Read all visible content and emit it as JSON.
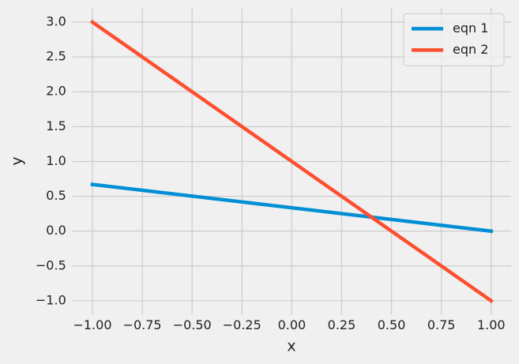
{
  "chart_data": {
    "type": "line",
    "x_label": "x",
    "y_label": "y",
    "x": [
      -1,
      1
    ],
    "series": [
      {
        "name": "eqn 1",
        "color": "#008fd5",
        "values": [
          0.67,
          0
        ]
      },
      {
        "name": "eqn 2",
        "color": "#fc4f30",
        "values": [
          3,
          -1
        ]
      }
    ],
    "xlim": [
      -1.1,
      1.1
    ],
    "ylim": [
      -1.2,
      3.2
    ],
    "xticks": [
      {
        "value": -1,
        "label": "−1.00"
      },
      {
        "value": -0.75,
        "label": "−0.75"
      },
      {
        "value": -0.5,
        "label": "−0.50"
      },
      {
        "value": -0.25,
        "label": "−0.25"
      },
      {
        "value": 0,
        "label": "0.00"
      },
      {
        "value": 0.25,
        "label": "0.25"
      },
      {
        "value": 0.5,
        "label": "0.50"
      },
      {
        "value": 0.75,
        "label": "0.75"
      },
      {
        "value": 1,
        "label": "1.00"
      }
    ],
    "yticks": [
      {
        "value": -1,
        "label": "−1.0"
      },
      {
        "value": -0.5,
        "label": "−0.5"
      },
      {
        "value": 0,
        "label": "0.0"
      },
      {
        "value": 0.5,
        "label": "0.5"
      },
      {
        "value": 1,
        "label": "1.0"
      },
      {
        "value": 1.5,
        "label": "1.5"
      },
      {
        "value": 2,
        "label": "2.0"
      },
      {
        "value": 2.5,
        "label": "2.5"
      },
      {
        "value": 3,
        "label": "3.0"
      }
    ],
    "grid": true,
    "legend": "upper right"
  }
}
